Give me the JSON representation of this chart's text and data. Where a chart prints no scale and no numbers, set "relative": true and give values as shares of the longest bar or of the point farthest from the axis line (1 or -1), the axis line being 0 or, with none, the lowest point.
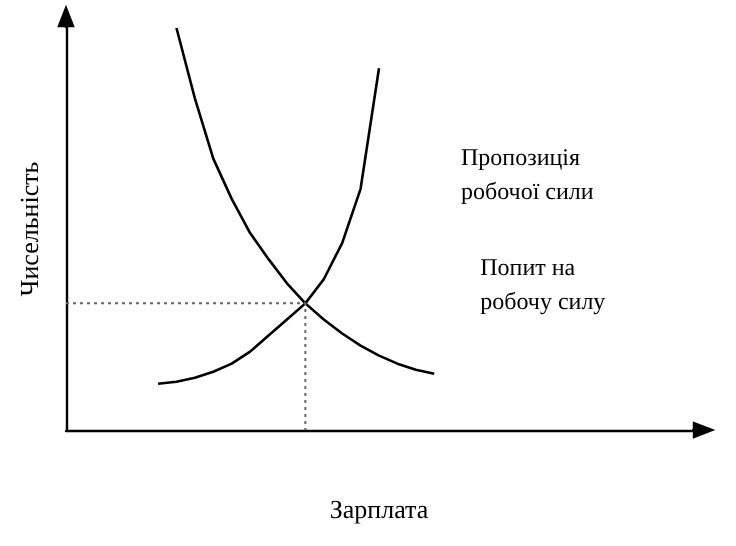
{
  "chart_data": {
    "type": "line",
    "relative": true,
    "xlabel": "Зарплата",
    "ylabel": "Чисельність",
    "legend": false,
    "grid": false,
    "marker": "none",
    "categories": [
      null,
      null,
      null,
      null,
      null,
      null,
      null,
      null,
      null,
      null,
      null,
      null,
      null,
      null,
      null,
      null,
      null,
      null,
      null,
      null,
      null,
      null,
      null,
      null,
      null,
      null,
      null,
      null,
      null,
      null,
      null,
      null,
      null,
      null,
      null
    ],
    "series": [
      {
        "name": "Пропозиція робочої сили",
        "color": "#000000",
        "values": [
          null,
          null,
          null,
          null,
          null,
          0.115,
          0.12,
          0.13,
          0.145,
          0.165,
          0.195,
          0.235,
          0.275,
          0.315,
          0.375,
          0.465,
          0.6,
          0.9,
          null,
          null,
          null,
          null,
          null,
          null,
          null,
          null,
          null,
          null,
          null,
          null,
          null,
          null,
          null,
          null,
          null
        ]
      },
      {
        "name": "Попит на робочу силу",
        "color": "#000000",
        "values": [
          null,
          null,
          null,
          null,
          null,
          null,
          1,
          0.825,
          0.675,
          0.575,
          0.49,
          0.425,
          0.365,
          0.315,
          0.275,
          0.24,
          0.21,
          0.185,
          0.165,
          0.15,
          0.14,
          null,
          null,
          null,
          null,
          null,
          null,
          null,
          null,
          null,
          null,
          null,
          null,
          null,
          null
        ]
      }
    ]
  }
}
